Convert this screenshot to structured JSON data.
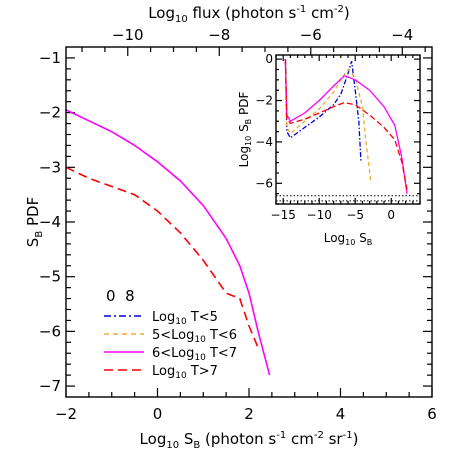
{
  "chart_data": [
    {
      "type": "line",
      "xlabel_main": "Log",
      "xlabel_sub": "10",
      "xlabel_after": " S",
      "xlabel_sub2": "B",
      "xlabel_rest": " (photon s",
      "xlabel_sup1": "-1",
      "xlabel_rest2": " cm",
      "xlabel_sup2": "-2",
      "xlabel_rest3": " sr",
      "xlabel_sup3": "-1",
      "xlabel_rest4": ")",
      "ylabel_main": "S",
      "ylabel_sub": "B",
      "ylabel_rest": " PDF",
      "toplabel_main": "Log",
      "toplabel_sub": "10",
      "toplabel_rest": " flux (photon s",
      "toplabel_sup1": "-1",
      "toplabel_rest2": " cm",
      "toplabel_sup2": "-2",
      "toplabel_rest3": ")",
      "xlim": [
        -2,
        6
      ],
      "ylim": [
        -7.2,
        -0.8
      ],
      "xticks": [
        -2,
        0,
        2,
        4,
        6
      ],
      "xtick_labels": [
        "−2",
        "0",
        "2",
        "4",
        "6"
      ],
      "yticks": [
        -7,
        -6,
        -5,
        -4,
        -3,
        -2,
        -1
      ],
      "ytick_labels": [
        "−7",
        "−6",
        "−5",
        "−4",
        "−3",
        "−2",
        "−1"
      ],
      "top_axis": {
        "ticks": [
          -10,
          -8,
          -6,
          -4
        ],
        "tick_labels": [
          "−10",
          "−8",
          "−6",
          "−4"
        ],
        "xlim": [
          -11.35,
          -3.35
        ]
      },
      "legend": {
        "title": "0  8",
        "placement": "bottom-left",
        "entries": [
          {
            "label_pre": "Log",
            "label_sub": "10",
            "label_post": " T<5",
            "color": "#0000dd",
            "dash": "dashdot"
          },
          {
            "label_pre": "5<Log",
            "label_sub": "10",
            "label_post": " T<6",
            "color": "#f0a830",
            "dash": "dash"
          },
          {
            "label_pre": "6<Log",
            "label_sub": "10",
            "label_post": " T<7",
            "color": "#ff00ff",
            "dash": "solid"
          },
          {
            "label_pre": "Log",
            "label_sub": "10",
            "label_post": " T>7",
            "color": "#ff0000",
            "dash": "longdash"
          }
        ]
      },
      "series": [
        {
          "name": "6<Log10 T<7",
          "color": "#ff00ff",
          "dash": "solid",
          "x": [
            -2.0,
            -1.5,
            -1.0,
            -0.5,
            0.0,
            0.5,
            1.0,
            1.5,
            1.8,
            2.0,
            2.2,
            2.45
          ],
          "y": [
            -1.95,
            -2.15,
            -2.35,
            -2.6,
            -2.9,
            -3.25,
            -3.7,
            -4.3,
            -4.8,
            -5.3,
            -6.0,
            -6.8
          ]
        },
        {
          "name": "Log10 T>7",
          "color": "#ff0000",
          "dash": "longdash",
          "x": [
            -2.0,
            -1.5,
            -1.0,
            -0.5,
            0.0,
            0.5,
            1.0,
            1.5,
            1.8,
            2.0,
            2.2
          ],
          "y": [
            -3.0,
            -3.2,
            -3.35,
            -3.5,
            -3.8,
            -4.2,
            -4.7,
            -5.3,
            -5.4,
            -5.9,
            -6.3
          ]
        }
      ]
    },
    {
      "type": "line",
      "placement": "inset-top-right",
      "xlabel_main": "Log",
      "xlabel_sub": "10",
      "xlabel_after": " S",
      "xlabel_sub2": "B",
      "ylabel_main": "Log",
      "ylabel_sub": "10",
      "ylabel_after": " S",
      "ylabel_sub2": "B",
      "ylabel_rest": " PDF",
      "xlim": [
        -16,
        4
      ],
      "ylim": [
        -7,
        0.2
      ],
      "xticks": [
        -15,
        -10,
        -5,
        0
      ],
      "xtick_labels": [
        "−15",
        "−10",
        "−5",
        "0"
      ],
      "yticks": [
        -6,
        -4,
        -2,
        0
      ],
      "ytick_labels": [
        "−6",
        "−4",
        "−2",
        "0"
      ],
      "reference_lines": [
        {
          "y": -6.6,
          "style": "dotted",
          "color": "#000000"
        },
        {
          "y": -6.85,
          "style": "dotted",
          "color": "#000000"
        }
      ],
      "series": [
        {
          "name": "Log10 T<5",
          "color": "#0000dd",
          "dash": "dashdot",
          "x": [
            -14.7,
            -14.5,
            -14.0,
            -12.0,
            -10.0,
            -8.0,
            -7.0,
            -6.0,
            -5.5,
            -5.0,
            -4.5,
            -4.2
          ],
          "y": [
            0.0,
            -3.5,
            -3.8,
            -3.3,
            -2.8,
            -2.2,
            -1.7,
            -0.7,
            -0.1,
            -1.5,
            -3.0,
            -5.0
          ]
        },
        {
          "name": "5<Log10 T<6",
          "color": "#f0a830",
          "dash": "dash",
          "x": [
            -14.7,
            -14.5,
            -14.0,
            -12.0,
            -10.0,
            -8.0,
            -7.0,
            -6.0,
            -5.0,
            -4.0,
            -3.5,
            -2.8
          ],
          "y": [
            0.0,
            -3.3,
            -3.6,
            -3.0,
            -2.4,
            -1.6,
            -1.0,
            -0.5,
            -0.9,
            -2.3,
            -4.0,
            -6.0
          ]
        },
        {
          "name": "6<Log10 T<7",
          "color": "#ff00ff",
          "dash": "solid",
          "x": [
            -14.7,
            -14.5,
            -14.0,
            -12.0,
            -10.0,
            -8.0,
            -6.5,
            -5.0,
            -3.0,
            -1.0,
            0.5,
            1.5,
            2.2
          ],
          "y": [
            0.0,
            -2.7,
            -3.0,
            -2.6,
            -2.0,
            -1.3,
            -0.8,
            -1.0,
            -1.5,
            -2.3,
            -3.2,
            -4.8,
            -6.5
          ]
        },
        {
          "name": "Log10 T>7",
          "color": "#ff0000",
          "dash": "longdash",
          "x": [
            -14.7,
            -14.5,
            -14.0,
            -12.0,
            -10.0,
            -8.0,
            -6.5,
            -5.0,
            -3.0,
            -1.0,
            0.5,
            1.5,
            2.2
          ],
          "y": [
            0.0,
            -2.9,
            -3.1,
            -2.9,
            -2.6,
            -2.3,
            -2.1,
            -2.2,
            -2.7,
            -3.3,
            -3.9,
            -5.0,
            -6.3
          ]
        }
      ]
    }
  ]
}
